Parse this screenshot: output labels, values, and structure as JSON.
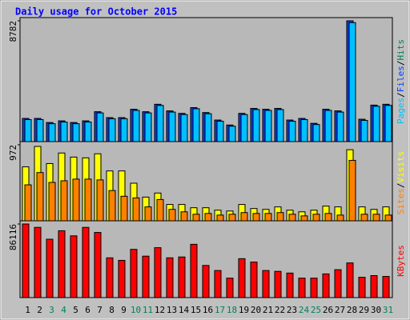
{
  "chart_data": [
    {
      "type": "bar",
      "title": "Daily usage for October 2015",
      "ylim": [
        0,
        8782
      ],
      "yticks": [
        8782
      ],
      "legend_separator": "/",
      "series": [
        {
          "name": "Pages",
          "color": "#00c0ff",
          "values": [
            1650,
            1650,
            1350,
            1470,
            1350,
            1470,
            2130,
            1710,
            1710,
            2310,
            2130,
            2670,
            2190,
            2010,
            2430,
            2070,
            1530,
            1170,
            2010,
            2370,
            2310,
            2370,
            1530,
            1650,
            1290,
            2310,
            2190,
            8650,
            1590,
            2610,
            2670
          ]
        },
        {
          "name": "Files",
          "color": "#0040ff",
          "values": [
            1730,
            1730,
            1430,
            1550,
            1430,
            1550,
            2210,
            1790,
            1790,
            2390,
            2210,
            2750,
            2270,
            2090,
            2510,
            2150,
            1610,
            1250,
            2090,
            2450,
            2390,
            2450,
            1610,
            1730,
            1370,
            2390,
            2270,
            8782,
            1670,
            2690,
            2750
          ]
        },
        {
          "name": "Hits",
          "color": "#00805c",
          "values": [
            1730,
            1730,
            1430,
            1550,
            1430,
            1550,
            2210,
            1790,
            1790,
            2390,
            2210,
            2750,
            2270,
            2090,
            2510,
            2150,
            1610,
            1250,
            2090,
            2450,
            2390,
            2450,
            1610,
            1730,
            1370,
            2390,
            2270,
            8782,
            1670,
            2690,
            2750
          ]
        }
      ]
    },
    {
      "type": "bar",
      "ylim": [
        0,
        972
      ],
      "yticks": [
        972
      ],
      "legend_separator": "/",
      "series": [
        {
          "name": "Sites",
          "color": "#ff8000",
          "values": [
            460,
            617,
            491,
            512,
            533,
            533,
            523,
            387,
            314,
            293,
            178,
            272,
            146,
            115,
            84,
            94,
            73,
            84,
            105,
            94,
            94,
            105,
            84,
            63,
            84,
            94,
            73,
            773,
            84,
            84,
            73
          ]
        },
        {
          "name": "Visits",
          "color": "#ffff00",
          "values": [
            690,
            951,
            732,
            867,
            815,
            805,
            857,
            638,
            638,
            481,
            303,
            355,
            209,
            209,
            167,
            167,
            136,
            125,
            209,
            157,
            146,
            178,
            136,
            115,
            136,
            188,
            178,
            909,
            178,
            146,
            178
          ]
        }
      ]
    },
    {
      "type": "bar",
      "ylim": [
        0,
        86116
      ],
      "yticks": [
        86116
      ],
      "legend_separator": "/",
      "categories": [
        "1",
        "2",
        "3",
        "4",
        "5",
        "6",
        "7",
        "8",
        "9",
        "10",
        "11",
        "12",
        "13",
        "14",
        "15",
        "16",
        "17",
        "18",
        "19",
        "20",
        "21",
        "22",
        "23",
        "24",
        "25",
        "26",
        "27",
        "28",
        "29",
        "30",
        "31"
      ],
      "category_colors": [
        "#000000",
        "#000000",
        "#00805c",
        "#00805c",
        "#000000",
        "#000000",
        "#000000",
        "#000000",
        "#000000",
        "#00805c",
        "#00805c",
        "#000000",
        "#000000",
        "#000000",
        "#000000",
        "#000000",
        "#00805c",
        "#00805c",
        "#000000",
        "#000000",
        "#000000",
        "#000000",
        "#000000",
        "#00805c",
        "#00805c",
        "#000000",
        "#000000",
        "#000000",
        "#000000",
        "#000000",
        "#00805c"
      ],
      "series": [
        {
          "name": "KBytes",
          "color": "#ff0000",
          "values": [
            86116,
            82170,
            68310,
            78210,
            72270,
            82170,
            76230,
            46530,
            43560,
            56430,
            48510,
            58410,
            46530,
            47520,
            62370,
            37620,
            31680,
            22770,
            45540,
            41580,
            31680,
            30690,
            28710,
            22770,
            22770,
            27720,
            32670,
            40590,
            23760,
            25740,
            24750
          ]
        }
      ]
    }
  ]
}
